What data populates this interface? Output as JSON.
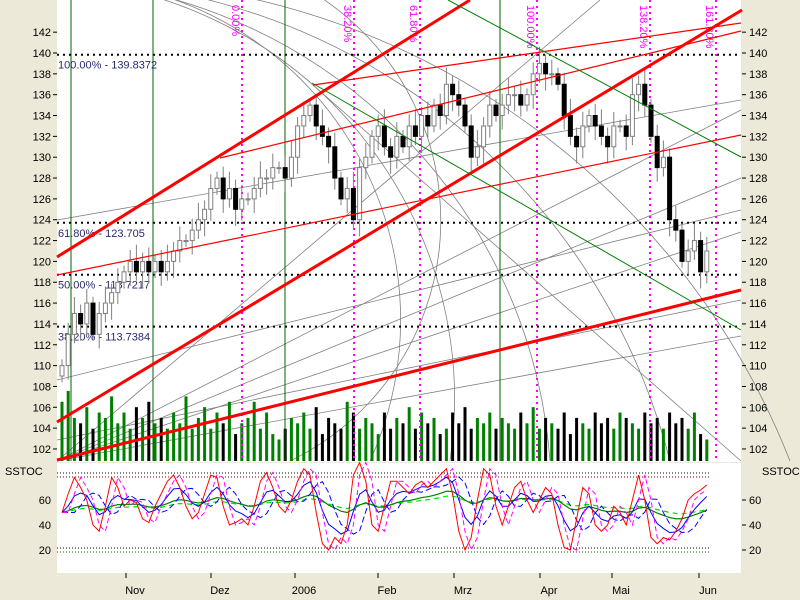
{
  "chart_data": [
    {
      "type": "candlestick",
      "title": "",
      "y_axis_ticks": [
        102,
        104,
        106,
        108,
        110,
        112,
        114,
        116,
        118,
        120,
        122,
        124,
        126,
        128,
        130,
        132,
        134,
        136,
        138,
        140,
        142
      ],
      "ylim": [
        100.5,
        145
      ],
      "x_tick_labels": [
        "Nov",
        "Dez",
        "2006",
        "Feb",
        "Mrz",
        "Apr",
        "Mai",
        "Jun"
      ],
      "grid": false,
      "close": [
        110,
        113,
        115,
        114,
        116,
        113,
        115,
        116,
        117,
        118,
        119,
        120,
        119,
        120,
        119,
        120,
        119,
        120,
        121,
        122,
        122,
        123,
        124,
        125,
        127,
        128,
        126,
        127,
        125,
        126,
        126,
        127,
        128,
        128,
        129,
        129,
        128,
        130,
        133,
        134,
        135,
        133,
        132,
        131,
        128,
        126,
        127,
        124,
        129,
        130,
        132,
        133,
        131,
        130,
        132,
        131,
        133,
        132,
        134,
        133,
        135,
        134,
        137,
        136,
        135,
        133,
        130,
        131,
        133,
        135,
        134,
        135,
        136,
        136,
        135,
        136,
        138,
        139,
        138,
        138,
        137,
        134,
        132,
        131,
        133,
        134,
        133,
        132,
        131,
        133,
        133,
        132,
        136,
        137,
        135,
        132,
        129,
        130,
        124,
        123,
        120,
        121,
        122,
        119,
        121
      ],
      "volume_relative": [
        55,
        65,
        40,
        35,
        50,
        30,
        45,
        40,
        60,
        35,
        45,
        30,
        50,
        40,
        55,
        35,
        40,
        30,
        45,
        35,
        60,
        30,
        40,
        50,
        30,
        45,
        35,
        55,
        25,
        35,
        40,
        55,
        30,
        45,
        25,
        20,
        30,
        40,
        35,
        45,
        30,
        50,
        25,
        40,
        35,
        30,
        55,
        45,
        30,
        40,
        35,
        25,
        45,
        30,
        40,
        35,
        50,
        30,
        45,
        35,
        40,
        25,
        30,
        45,
        35,
        50,
        30,
        40,
        35,
        45,
        30,
        40,
        35,
        30,
        45,
        35,
        50,
        30,
        40,
        35,
        30,
        45,
        25,
        40,
        35,
        30,
        45,
        35,
        40,
        30,
        45,
        40,
        35,
        30,
        45,
        35,
        40,
        30,
        45,
        35,
        40,
        30,
        45,
        25,
        20
      ],
      "fibonacci_levels": [
        {
          "label": "100.00% - 139.8372",
          "value": 139.8372
        },
        {
          "label": "61.80% - 123.705",
          "value": 123.705
        },
        {
          "label": "50.00% - 118.7217",
          "value": 118.7217
        },
        {
          "label": "38.20% - 113.7384",
          "value": 113.7384
        }
      ],
      "fibonacci_time_labels": [
        "0.00%",
        "38.20%",
        "61.80%",
        "100.00%",
        "138.20%",
        "161.80%"
      ],
      "colors": {
        "up_volume": "#008000",
        "down_volume": "#000000",
        "trend": "#ff0000",
        "fib_time": "#ff00ff",
        "cycle": "#006400",
        "fan": "#808080"
      }
    },
    {
      "type": "line",
      "title": "SSTOC",
      "title_right": "SSTOC",
      "y_axis_ticks": [
        20,
        40,
        60
      ],
      "ylim": [
        0,
        100
      ],
      "reference_levels": [
        20,
        80
      ],
      "series": [
        {
          "color": "#ff0000",
          "values": [
            50,
            65,
            78,
            70,
            60,
            40,
            35,
            55,
            78,
            70,
            55,
            60,
            58,
            45,
            42,
            55,
            65,
            75,
            80,
            70,
            55,
            45,
            50,
            65,
            80,
            78,
            55,
            40,
            42,
            45,
            40,
            55,
            75,
            82,
            70,
            55,
            50,
            60,
            75,
            85,
            80,
            50,
            25,
            20,
            30,
            25,
            40,
            80,
            90,
            75,
            40,
            35,
            55,
            75,
            75,
            70,
            65,
            72,
            75,
            70,
            75,
            80,
            85,
            65,
            35,
            20,
            30,
            60,
            85,
            80,
            55,
            40,
            55,
            70,
            75,
            60,
            50,
            60,
            70,
            65,
            40,
            22,
            20,
            45,
            70,
            65,
            40,
            35,
            40,
            55,
            50,
            40,
            60,
            80,
            60,
            30,
            25,
            30,
            28,
            35,
            45,
            60,
            65,
            68,
            72
          ]
        }
      ]
    }
  ]
}
